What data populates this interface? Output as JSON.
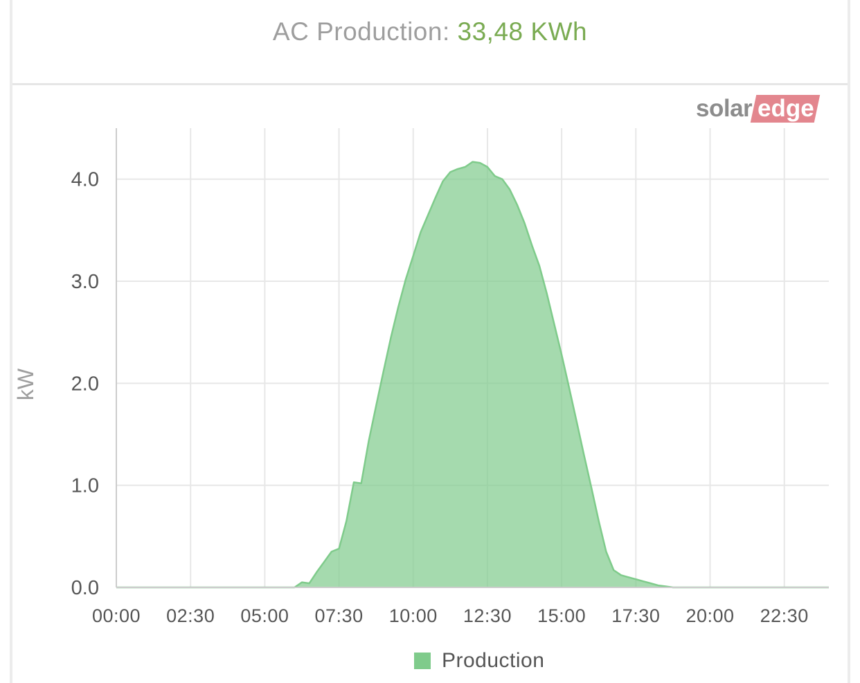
{
  "header": {
    "label": "AC Production:",
    "value": "33,48 KWh",
    "value_color": "#7aab52"
  },
  "logo": {
    "part1": "solar",
    "part2": "edge"
  },
  "chart_data": {
    "type": "area",
    "title": "",
    "xlabel": "",
    "ylabel": "kW",
    "ylim": [
      0,
      4.5
    ],
    "xlim": [
      "00:00",
      "24:00"
    ],
    "x_tick_labels": [
      "00:00",
      "02:30",
      "05:00",
      "07:30",
      "10:00",
      "12:30",
      "15:00",
      "17:30",
      "20:00",
      "22:30"
    ],
    "y_tick_labels": [
      "0.0",
      "1.0",
      "2.0",
      "3.0",
      "4.0"
    ],
    "y_ticks": [
      0,
      1,
      2,
      3,
      4
    ],
    "grid": true,
    "legend_position": "bottom",
    "series": [
      {
        "name": "Production",
        "color": "#7fcb8b",
        "x": [
          "00:00",
          "06:00",
          "06:15",
          "06:30",
          "06:45",
          "07:00",
          "07:15",
          "07:30",
          "07:45",
          "08:00",
          "08:15",
          "08:30",
          "08:45",
          "09:00",
          "09:15",
          "09:30",
          "09:45",
          "10:00",
          "10:15",
          "10:30",
          "10:45",
          "11:00",
          "11:15",
          "11:30",
          "11:45",
          "12:00",
          "12:15",
          "12:30",
          "12:45",
          "13:00",
          "13:15",
          "13:30",
          "13:45",
          "14:00",
          "14:15",
          "14:30",
          "14:45",
          "15:00",
          "15:15",
          "15:30",
          "15:45",
          "16:00",
          "16:15",
          "16:30",
          "16:45",
          "17:00",
          "17:15",
          "17:30",
          "17:45",
          "18:00",
          "18:15",
          "18:30",
          "18:45",
          "19:00",
          "19:15",
          "19:30",
          "19:45",
          "20:00",
          "20:15",
          "20:30",
          "20:45",
          "21:00",
          "24:00"
        ],
        "y": [
          0,
          0,
          0.05,
          0.04,
          0.15,
          0.25,
          0.35,
          0.38,
          0.65,
          1.03,
          1.02,
          1.43,
          1.78,
          2.12,
          2.45,
          2.75,
          3.02,
          3.25,
          3.48,
          3.65,
          3.82,
          3.98,
          4.07,
          4.1,
          4.12,
          4.17,
          4.16,
          4.12,
          4.03,
          4.0,
          3.9,
          3.75,
          3.57,
          3.35,
          3.15,
          2.88,
          2.58,
          2.28,
          1.96,
          1.63,
          1.3,
          0.98,
          0.65,
          0.35,
          0.17,
          0.12,
          0.1,
          0.08,
          0.06,
          0.04,
          0.02,
          0.01,
          0,
          0,
          0,
          0,
          0,
          0,
          0,
          0,
          0,
          0,
          0
        ]
      }
    ]
  }
}
